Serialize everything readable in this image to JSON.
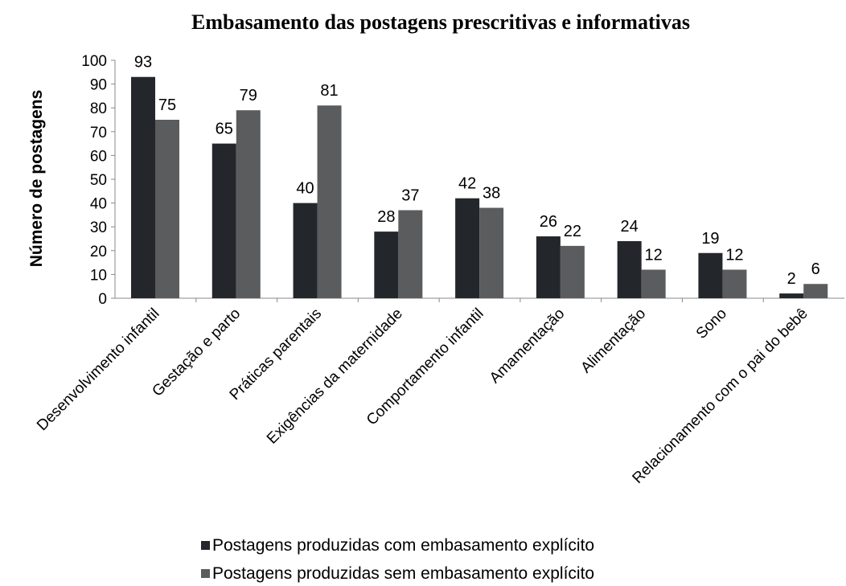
{
  "chart_data": {
    "type": "bar",
    "title": "Embasamento das postagens prescritivas e informativas",
    "y_label": "Número de postagens",
    "categories": [
      "Desenvolvimento infantil",
      "Gestação e parto",
      "Práticas parentais",
      "Exigências da maternidade",
      "Comportamento infantil",
      "Amamentação",
      "Alimentação",
      "Sono",
      "Relacionamento com o pai do bebê"
    ],
    "series": [
      {
        "name": "Postagens produzidas com embasamento explícito",
        "color": "#23262b",
        "values": [
          93,
          65,
          40,
          28,
          42,
          26,
          24,
          19,
          2
        ]
      },
      {
        "name": "Postagens produzidas sem embasamento explícito",
        "color": "#5a5c5e",
        "values": [
          75,
          79,
          81,
          37,
          38,
          22,
          12,
          12,
          6
        ]
      }
    ],
    "ylim": [
      0,
      100
    ],
    "yticks": [
      0,
      10,
      20,
      30,
      40,
      50,
      60,
      70,
      80,
      90,
      100
    ],
    "legend": "bottom"
  }
}
